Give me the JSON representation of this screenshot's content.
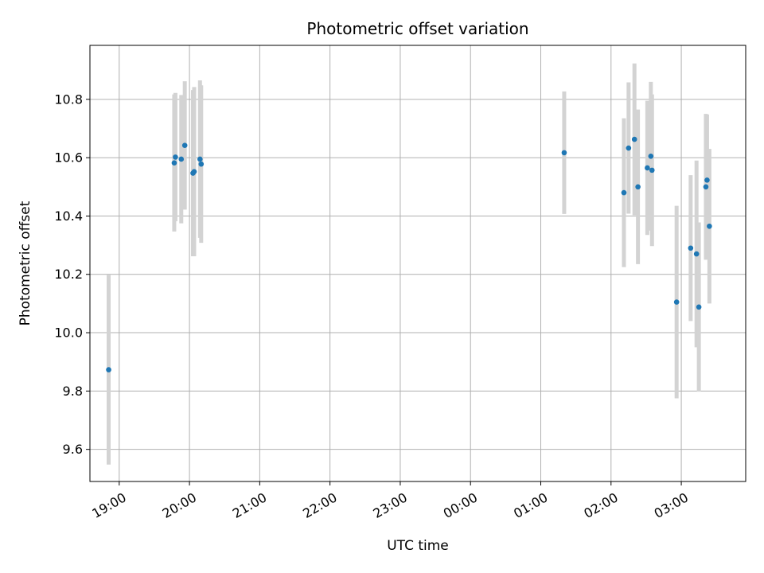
{
  "chart_data": {
    "type": "scatter",
    "title": "Photometric offset variation",
    "xlabel": "UTC time",
    "ylabel": "Photometric offset",
    "x_unit": "hours since 00:00 UTC of the first night",
    "xlim": [
      "18:35",
      "03:55"
    ],
    "ylim": [
      9.49,
      10.985
    ],
    "x_ticks": [
      "19:00",
      "20:00",
      "21:00",
      "22:00",
      "23:00",
      "00:00",
      "01:00",
      "02:00",
      "03:00"
    ],
    "y_ticks": [
      "9.6",
      "9.8",
      "10.0",
      "10.2",
      "10.4",
      "10.6",
      "10.8"
    ],
    "grid": true,
    "point_color": "#1f77b4",
    "errorbar_color": "#d3d3d3",
    "points": [
      {
        "t": "18:51",
        "y": 9.873,
        "err": 0.325
      },
      {
        "t": "19:47",
        "y": 10.582,
        "err": 0.235
      },
      {
        "t": "19:48",
        "y": 10.602,
        "err": 0.22
      },
      {
        "t": "19:53",
        "y": 10.595,
        "err": 0.22
      },
      {
        "t": "19:56",
        "y": 10.642,
        "err": 0.22
      },
      {
        "t": "20:03",
        "y": 10.547,
        "err": 0.285
      },
      {
        "t": "20:04",
        "y": 10.552,
        "err": 0.29
      },
      {
        "t": "20:09",
        "y": 10.595,
        "err": 0.27
      },
      {
        "t": "20:10",
        "y": 10.578,
        "err": 0.27
      },
      {
        "t": "01:20",
        "y": 10.617,
        "err": 0.21
      },
      {
        "t": "02:11",
        "y": 10.48,
        "err": 0.255
      },
      {
        "t": "02:15",
        "y": 10.633,
        "err": 0.225
      },
      {
        "t": "02:20",
        "y": 10.663,
        "err": 0.26
      },
      {
        "t": "02:23",
        "y": 10.5,
        "err": 0.265
      },
      {
        "t": "02:31",
        "y": 10.565,
        "err": 0.23
      },
      {
        "t": "02:34",
        "y": 10.605,
        "err": 0.255
      },
      {
        "t": "02:35",
        "y": 10.557,
        "err": 0.26
      },
      {
        "t": "02:56",
        "y": 10.105,
        "err": 0.33
      },
      {
        "t": "03:08",
        "y": 10.29,
        "err": 0.25
      },
      {
        "t": "03:13",
        "y": 10.27,
        "err": 0.32
      },
      {
        "t": "03:15",
        "y": 10.088,
        "err": 0.29
      },
      {
        "t": "03:21",
        "y": 10.5,
        "err": 0.25
      },
      {
        "t": "03:22",
        "y": 10.523,
        "err": 0.225
      },
      {
        "t": "03:24",
        "y": 10.365,
        "err": 0.265
      }
    ]
  }
}
